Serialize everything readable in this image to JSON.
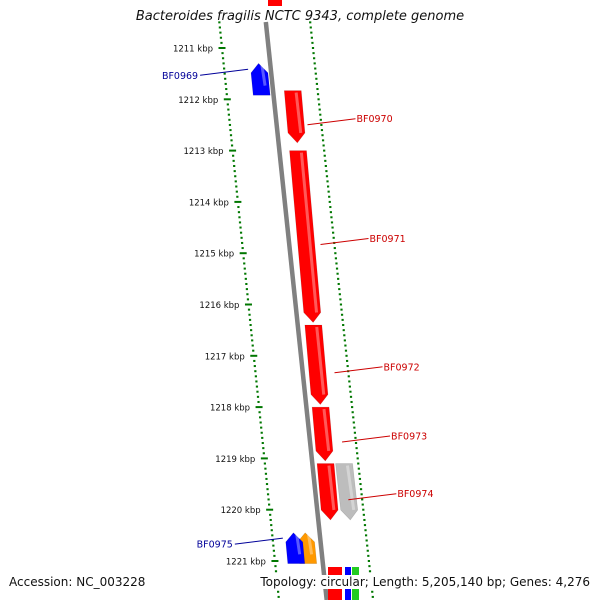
{
  "title": "Bacteroides fragilis NCTC 9343, complete genome",
  "footer": {
    "accession": "Accession: NC_003228",
    "summary": "Topology: circular; Length: 5,205,140 bp; Genes: 4,276"
  },
  "colors": {
    "forward_gene": "#ff0000",
    "reverse_gene": "#0000ff",
    "other_gene": "#bdbdbd",
    "orange_gene": "#ff9900",
    "ticks": "#007700",
    "backbone": "#808080",
    "forward_label": "#cc0000",
    "reverse_label": "#000099"
  },
  "scale": {
    "ticks": [
      {
        "kbp": 1211,
        "label": "1211 kbp"
      },
      {
        "kbp": 1212,
        "label": "1212 kbp"
      },
      {
        "kbp": 1213,
        "label": "1213 kbp"
      },
      {
        "kbp": 1214,
        "label": "1214 kbp"
      },
      {
        "kbp": 1215,
        "label": "1215 kbp"
      },
      {
        "kbp": 1216,
        "label": "1216 kbp"
      },
      {
        "kbp": 1217,
        "label": "1217 kbp"
      },
      {
        "kbp": 1218,
        "label": "1218 kbp"
      },
      {
        "kbp": 1219,
        "label": "1219 kbp"
      },
      {
        "kbp": 1220,
        "label": "1220 kbp"
      },
      {
        "kbp": 1221,
        "label": "1221 kbp"
      }
    ]
  },
  "genes": [
    {
      "name": "BF0969",
      "strand": "reverse",
      "start": 1211.3,
      "end": 1211.92,
      "color": "#0000ff",
      "labeled": true
    },
    {
      "name": "BF0970",
      "strand": "forward",
      "start": 1211.83,
      "end": 1212.85,
      "color": "#ff0000",
      "labeled": true
    },
    {
      "name": "BF0971",
      "strand": "forward",
      "start": 1213.0,
      "end": 1216.35,
      "color": "#ff0000",
      "labeled": true
    },
    {
      "name": "BF0972",
      "strand": "forward",
      "start": 1216.4,
      "end": 1217.95,
      "color": "#ff0000",
      "labeled": true
    },
    {
      "name": "BF0973",
      "strand": "forward",
      "start": 1218.0,
      "end": 1219.05,
      "color": "#ff0000",
      "labeled": true
    },
    {
      "name": "BF0974",
      "strand": "forward",
      "start": 1219.1,
      "end": 1220.2,
      "color": "#ff0000",
      "labeled": true
    },
    {
      "name": "",
      "strand": "forward2",
      "start": 1219.1,
      "end": 1220.2,
      "color": "#bdbdbd",
      "labeled": false
    },
    {
      "name": "",
      "strand": "reverse",
      "start": 1220.45,
      "end": 1221.05,
      "color": "#ff9900",
      "labeled": false
    },
    {
      "name": "BF0975",
      "strand": "reverse2",
      "start": 1220.45,
      "end": 1221.05,
      "color": "#0000ff",
      "labeled": true
    }
  ]
}
